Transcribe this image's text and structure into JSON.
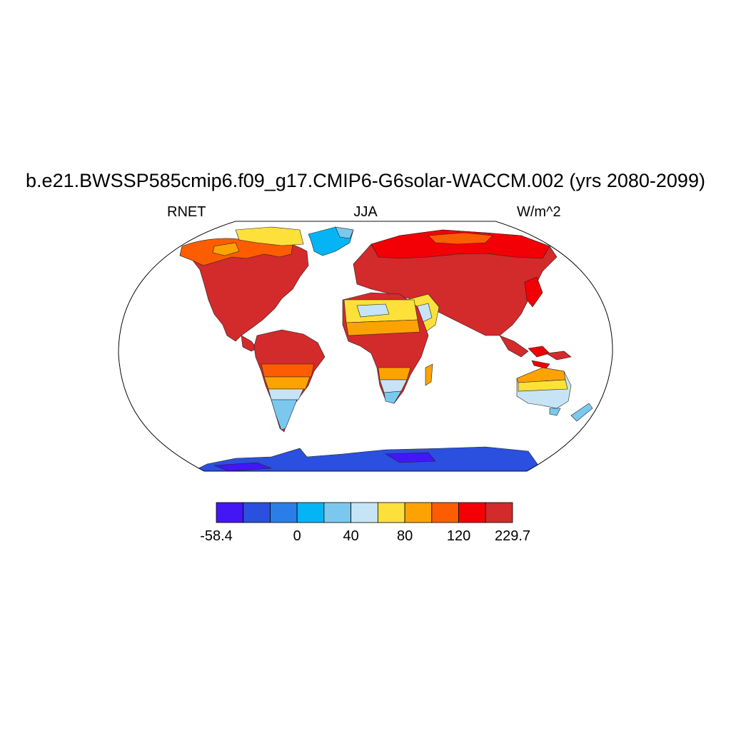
{
  "title": "b.e21.BWSSP585cmip6.f09_g17.CMIP6-G6solar-WACCM.002 (yrs 2080-2099)",
  "left_label": "RNET",
  "center_label": "JJA",
  "right_label": "W/m^2",
  "colorbar": {
    "colors": [
      "#4316f5",
      "#2b4fdf",
      "#2b7ee8",
      "#05b4f5",
      "#7bc8ee",
      "#c6e4f6",
      "#fde03a",
      "#fca303",
      "#fc5d00",
      "#f20006",
      "#d32a2b"
    ],
    "tick_labels": [
      "-58.4",
      "0",
      "40",
      "80",
      "120",
      "229.7"
    ]
  },
  "map": {
    "projection": "Robinson",
    "variable": "RNET",
    "season": "JJA",
    "units": "W/m^2"
  }
}
